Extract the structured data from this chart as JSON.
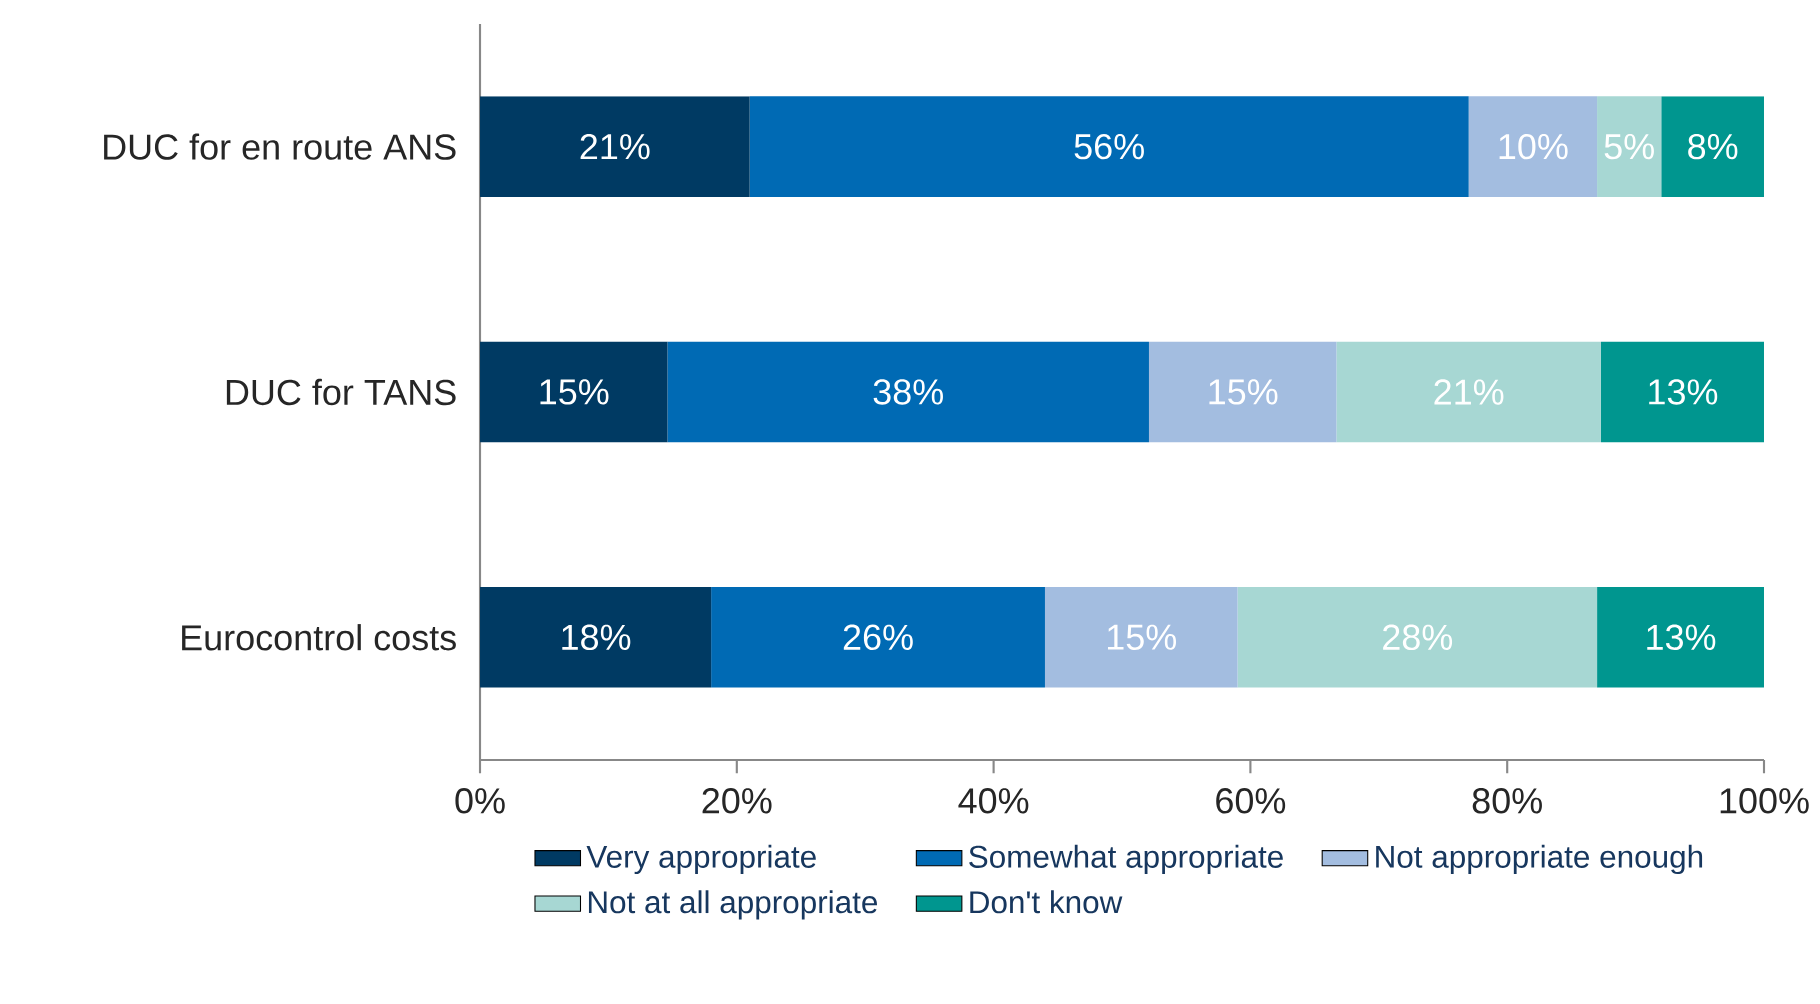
{
  "chart_data": {
    "type": "bar",
    "orientation": "horizontal",
    "stacked": true,
    "categories": [
      "DUC for en route ANS",
      "DUC for TANS",
      "Eurocontrol costs"
    ],
    "series": [
      {
        "name": "Very appropriate",
        "color": "#003a63",
        "values": [
          21,
          14.6,
          18
        ],
        "value_labels": [
          "21%",
          "15%",
          "18%"
        ]
      },
      {
        "name": "Somewhat appropriate",
        "color": "#006ab4",
        "values": [
          56,
          37.5,
          26
        ],
        "value_labels": [
          "56%",
          "38%",
          "26%"
        ]
      },
      {
        "name": "Not appropriate enough",
        "color": "#a3bde0",
        "values": [
          10,
          14.6,
          15
        ],
        "value_labels": [
          "10%",
          "15%",
          "15%"
        ]
      },
      {
        "name": "Not at all appropriate",
        "color": "#a7d7d3",
        "values": [
          5,
          20.6,
          28
        ],
        "value_labels": [
          "5%",
          "21%",
          "28%"
        ]
      },
      {
        "name": "Don't know",
        "color": "#00968f",
        "values": [
          8,
          12.7,
          13
        ],
        "value_labels": [
          "8%",
          "13%",
          "13%"
        ]
      }
    ],
    "xlim": [
      0,
      100
    ],
    "xticks": [
      {
        "value": 0,
        "label": "0%"
      },
      {
        "value": 20,
        "label": "20%"
      },
      {
        "value": 40,
        "label": "40%"
      },
      {
        "value": 60,
        "label": "60%"
      },
      {
        "value": 80,
        "label": "80%"
      },
      {
        "value": 100,
        "label": "100%"
      }
    ],
    "grid": false,
    "legend": "bottom"
  }
}
